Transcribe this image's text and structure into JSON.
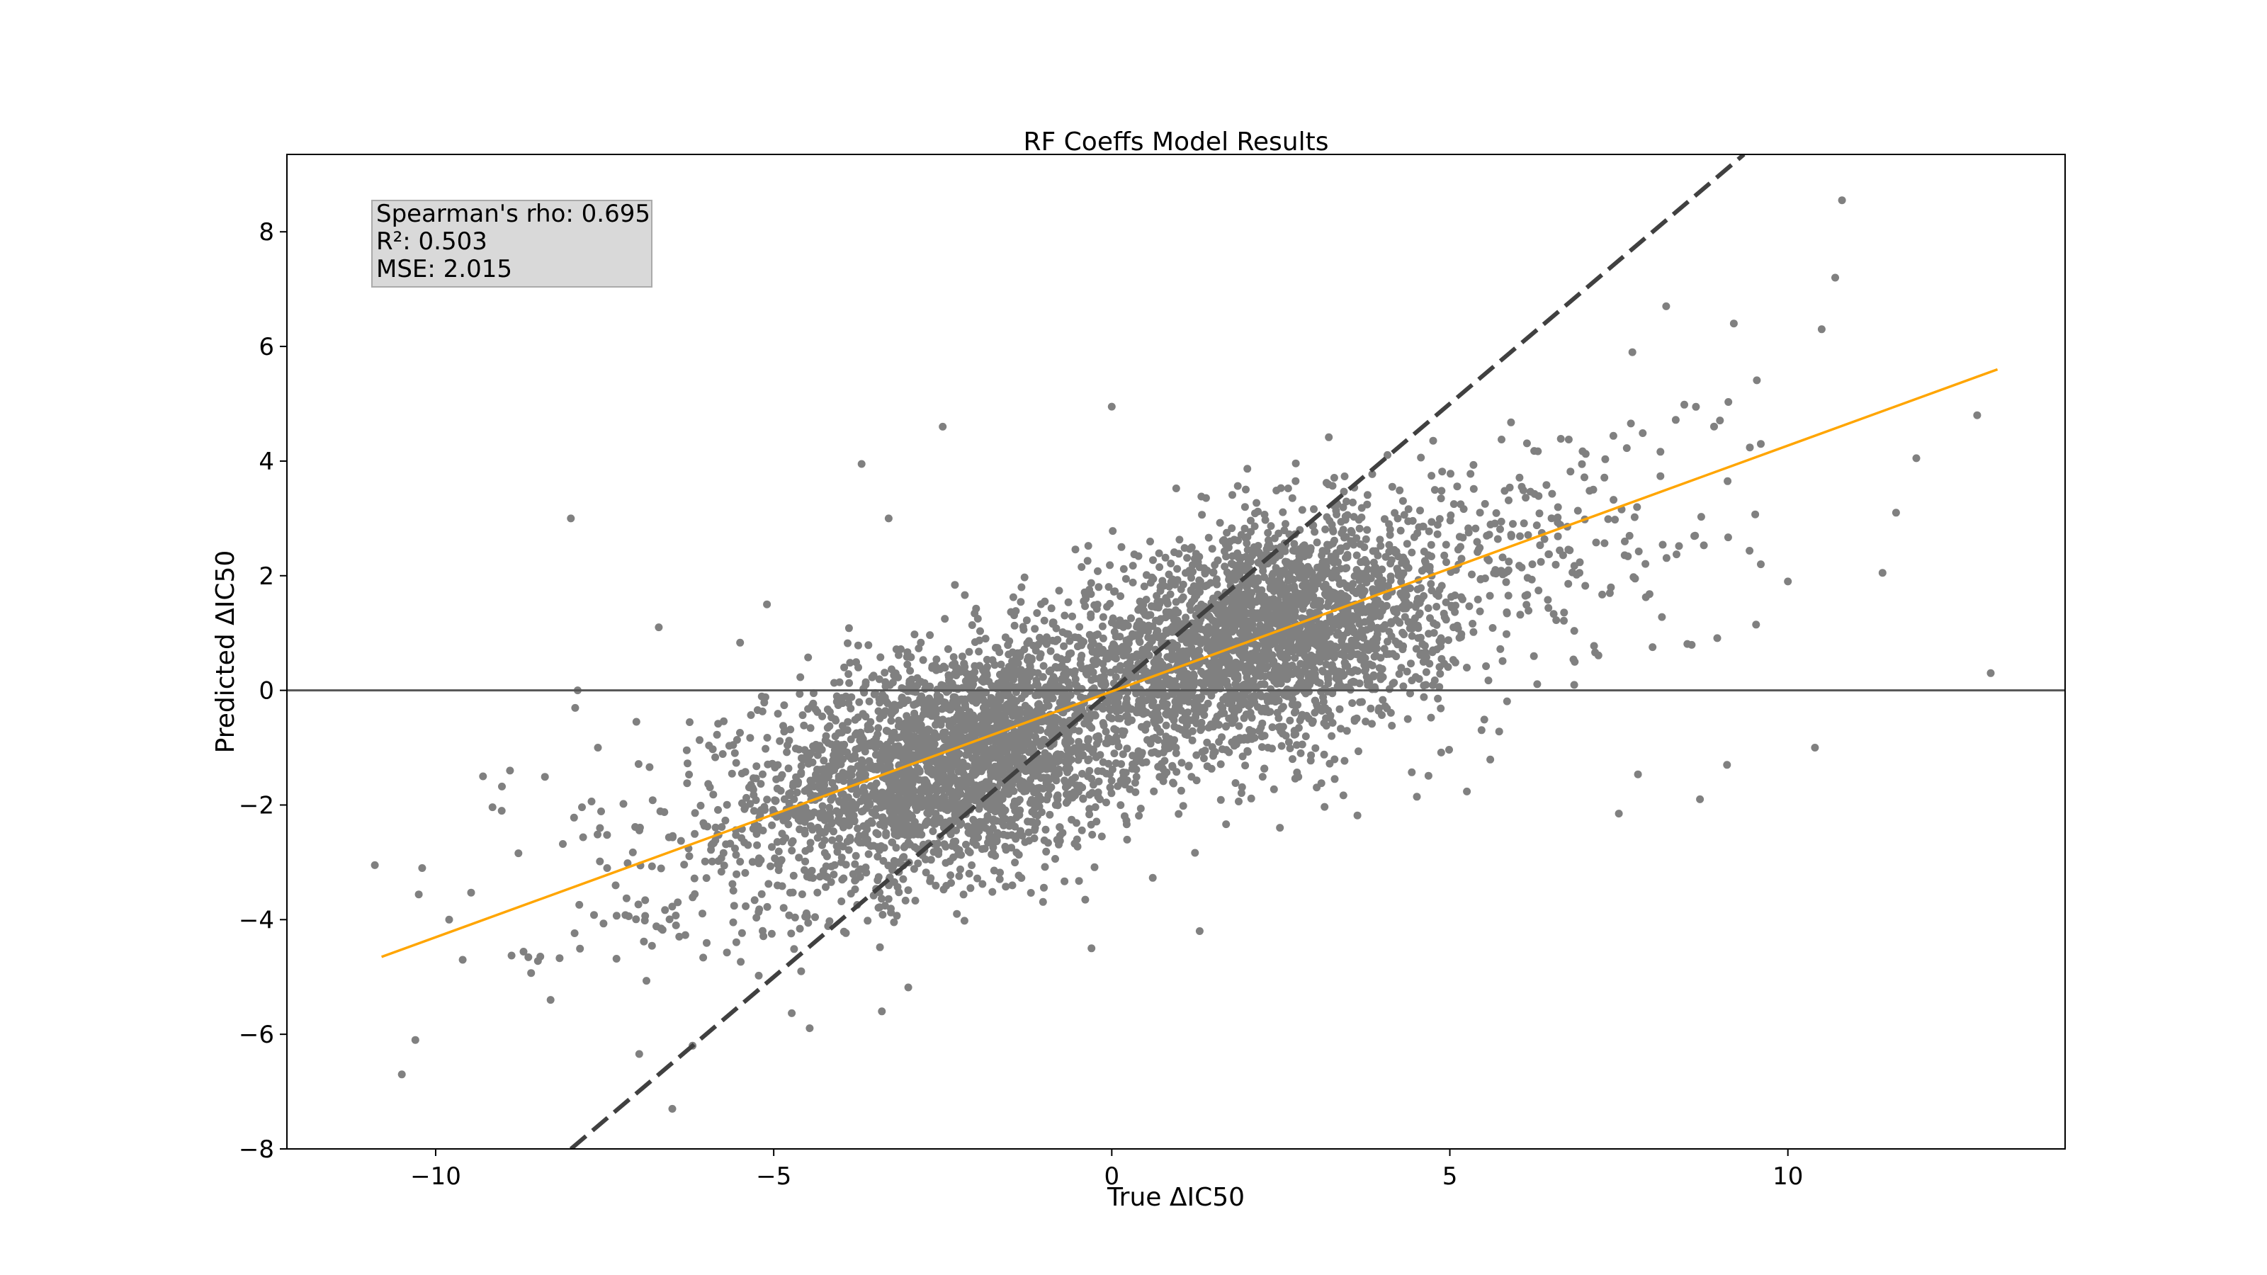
{
  "chart_data": {
    "type": "scatter",
    "title": "RF Coeffs Model Results",
    "xlabel": "True ΔIC50",
    "ylabel": "Predicted ΔIC50",
    "xlim": [
      -12.2,
      14.1
    ],
    "ylim": [
      -8.0,
      9.35
    ],
    "x_ticks": [
      -10,
      -5,
      0,
      5,
      10
    ],
    "x_tick_labels": [
      "−10",
      "−5",
      "0",
      "5",
      "10"
    ],
    "y_ticks": [
      -8,
      -6,
      -4,
      -2,
      0,
      2,
      4,
      6,
      8
    ],
    "y_tick_labels": [
      "−8",
      "−6",
      "−4",
      "−2",
      "0",
      "2",
      "4",
      "6",
      "8"
    ],
    "grid": false,
    "stats": {
      "spearman": "Spearman's rho: 0.695",
      "r2": "R²: 0.503",
      "mse": "MSE: 2.015"
    },
    "reference_lines": {
      "identity": {
        "slope": 1.0,
        "intercept": 0.0,
        "style": "dashed",
        "color": "#404040"
      },
      "zero": {
        "y": 0,
        "style": "solid",
        "color": "#555555"
      },
      "fit": {
        "x": [
          -10.8,
          13.1
        ],
        "y": [
          -4.65,
          5.6
        ],
        "color": "#FFA500"
      }
    },
    "series": [
      {
        "point_color": "#808080",
        "clusters": [
          {
            "cx": -2.3,
            "cy": -1.2,
            "sx": 1.4,
            "sy": 1.05,
            "rho": 0.35,
            "n": 2600
          },
          {
            "cx": 2.2,
            "cy": 0.9,
            "sx": 1.4,
            "sy": 1.05,
            "rho": 0.35,
            "n": 2600
          },
          {
            "cx": -5.8,
            "cy": -2.6,
            "sx": 1.6,
            "sy": 1.2,
            "rho": 0.3,
            "n": 220
          },
          {
            "cx": 6.3,
            "cy": 2.4,
            "sx": 1.5,
            "sy": 1.3,
            "rho": 0.3,
            "n": 220
          }
        ],
        "outliers": [
          [
            10.8,
            8.55
          ],
          [
            10.7,
            7.2
          ],
          [
            10.5,
            6.3
          ],
          [
            11.9,
            4.05
          ],
          [
            11.6,
            3.1
          ],
          [
            11.4,
            2.05
          ],
          [
            12.8,
            4.8
          ],
          [
            13.0,
            0.3
          ],
          [
            10.4,
            -1.0
          ],
          [
            9.1,
            -1.3
          ],
          [
            8.7,
            -1.9
          ],
          [
            7.5,
            -2.15
          ],
          [
            -8.0,
            3.0
          ],
          [
            -7.9,
            0.0
          ],
          [
            -10.9,
            -3.05
          ],
          [
            -10.3,
            -6.1
          ],
          [
            -10.5,
            -6.7
          ],
          [
            -6.7,
            1.1
          ],
          [
            -3.4,
            -5.6
          ],
          [
            -6.2,
            -6.2
          ],
          [
            -6.5,
            -7.3
          ],
          [
            -3.3,
            3.0
          ],
          [
            -2.5,
            4.6
          ],
          [
            -3.7,
            3.95
          ],
          [
            0.0,
            4.95
          ],
          [
            -0.3,
            -4.5
          ],
          [
            1.3,
            -4.2
          ],
          [
            8.2,
            6.7
          ],
          [
            9.2,
            6.4
          ],
          [
            7.7,
            5.9
          ],
          [
            9.6,
            4.3
          ],
          [
            10.0,
            1.9
          ],
          [
            9.6,
            2.2
          ],
          [
            -9.3,
            -1.5
          ],
          [
            -9.6,
            -4.7
          ],
          [
            -8.3,
            -5.4
          ],
          [
            -5.1,
            1.5
          ],
          [
            -8.9,
            -1.4
          ],
          [
            -7.6,
            -1.0
          ],
          [
            -9.8,
            -4.0
          ],
          [
            -10.2,
            -3.1
          ]
        ]
      }
    ]
  }
}
